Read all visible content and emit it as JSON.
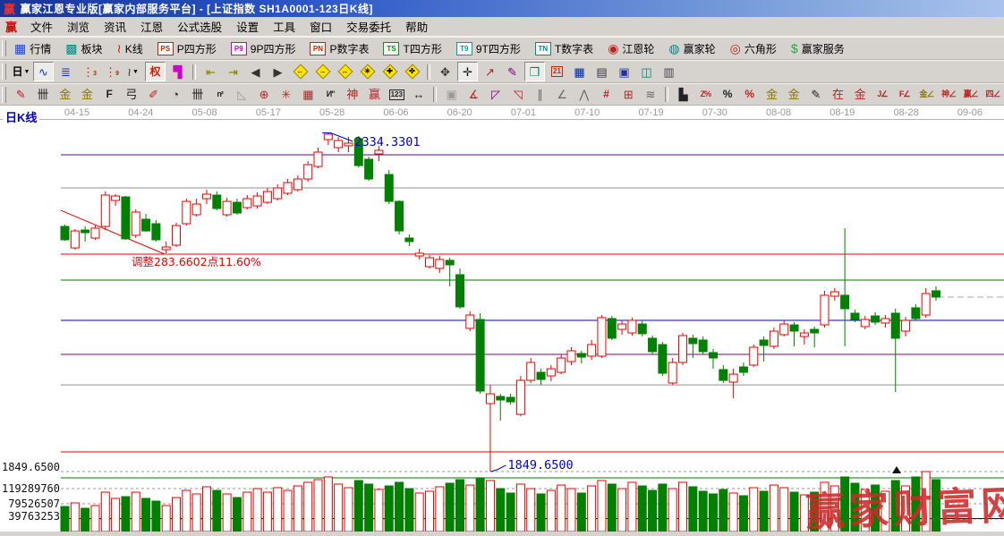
{
  "window": {
    "logo_glyph": "赢",
    "title": "赢家江恩专业版[赢家内部服务平台] - [上证指数  SH1A0001-123日K线]"
  },
  "menu": {
    "logo_glyph": "赢",
    "items": [
      "文件",
      "浏览",
      "资讯",
      "江恩",
      "公式选股",
      "设置",
      "工具",
      "窗口",
      "交易委托",
      "帮助"
    ]
  },
  "toolbar_main": [
    {
      "name": "quotes",
      "label": "行情",
      "glyph": "▦",
      "color": "#2244cc"
    },
    {
      "name": "sectors",
      "label": "板块",
      "glyph": "▩",
      "color": "#008b8b"
    },
    {
      "name": "kline",
      "label": "K线",
      "glyph": "≀",
      "color": "#cc2200"
    },
    {
      "name": "p-square",
      "label": "P四方形",
      "badge": "PS",
      "color": "#cc2200"
    },
    {
      "name": "9p-square",
      "label": "9P四方形",
      "badge": "P9",
      "color": "#cc00cc"
    },
    {
      "name": "p-digit-table",
      "label": "P数字表",
      "badge": "PN",
      "color": "#cc2200"
    },
    {
      "name": "t-square",
      "label": "T四方形",
      "badge": "TS",
      "color": "#009900"
    },
    {
      "name": "9t-square",
      "label": "9T四方形",
      "badge": "T9",
      "color": "#00a0a0"
    },
    {
      "name": "t-digit-table",
      "label": "T数字表",
      "badge": "TN",
      "color": "#008b8b"
    },
    {
      "name": "gann-wheel",
      "label": "江恩轮",
      "glyph": "◉",
      "color": "#bb2222"
    },
    {
      "name": "winner-wheel",
      "label": "赢家轮",
      "glyph": "◍",
      "color": "#008b8b"
    },
    {
      "name": "hexagon",
      "label": "六角形",
      "glyph": "◎",
      "color": "#bb2222"
    },
    {
      "name": "winner-service",
      "label": "赢家服务",
      "glyph": "$",
      "color": "#22aa44"
    }
  ],
  "toolbar_nav": [
    {
      "name": "period-day",
      "text": "日",
      "color": "#000000",
      "dropdown": true
    },
    {
      "name": "overlay-mode",
      "glyph": "∿",
      "color": "#1133cc",
      "pressed": true
    },
    {
      "name": "info-board",
      "glyph": "≣",
      "color": "#1133cc"
    },
    {
      "name": "ma3",
      "glyph": "⋮",
      "sub": "3",
      "color": "#cc2200"
    },
    {
      "name": "ma9",
      "glyph": "⋮",
      "sub": "9",
      "color": "#cc2200"
    },
    {
      "name": "candle-style",
      "glyph": "≀",
      "color": "#333333",
      "dropdown": true
    },
    {
      "name": "rights-adjust",
      "text": "权",
      "color": "#cc2200",
      "pressed": true
    },
    {
      "name": "vol-profile",
      "glyph": "▜",
      "color": "#cc00cc"
    },
    {
      "sep": true
    },
    {
      "name": "first-bar",
      "glyph": "⇤",
      "color": "#808000"
    },
    {
      "name": "last-bar",
      "glyph": "⇥",
      "color": "#808000"
    },
    {
      "name": "prev-bar",
      "glyph": "◀",
      "color": "#333333"
    },
    {
      "name": "next-bar",
      "glyph": "▶",
      "color": "#333333"
    },
    {
      "name": "gann-left",
      "diamond": true,
      "arrow": "←"
    },
    {
      "name": "gann-right",
      "diamond": true,
      "arrow": "→"
    },
    {
      "name": "gann-hspan",
      "diamond": true,
      "arrow": "↔"
    },
    {
      "name": "gann-star",
      "diamond": true,
      "arrow": "✳"
    },
    {
      "name": "gann-cross",
      "diamond": true,
      "arrow": "✚"
    },
    {
      "name": "gann-expand",
      "diamond": true,
      "arrow": "✜"
    },
    {
      "sep": true
    },
    {
      "name": "hand-tool",
      "glyph": "✥",
      "color": "#333333"
    },
    {
      "name": "crosshair-tool",
      "glyph": "✛",
      "color": "#111111",
      "pressed": true
    },
    {
      "name": "trendline-tool",
      "glyph": "↗",
      "color": "#aa2222"
    },
    {
      "name": "text-tool",
      "glyph": "✎",
      "color": "#800080"
    },
    {
      "name": "pattern-tool",
      "glyph": "❒",
      "color": "#008080",
      "pressed": true
    },
    {
      "name": "calendar",
      "text": "21",
      "color": "#cc2200",
      "boxed": true
    },
    {
      "name": "calculator",
      "glyph": "▦",
      "color": "#002299"
    },
    {
      "name": "memo",
      "glyph": "▤",
      "color": "#333344"
    },
    {
      "name": "save",
      "glyph": "▣",
      "color": "#223399"
    },
    {
      "name": "export-web",
      "glyph": "◫",
      "color": "#008080"
    },
    {
      "name": "print",
      "glyph": "▥",
      "color": "#444455"
    }
  ],
  "toolbar_draw": [
    {
      "name": "gann-pen",
      "glyph": "✎",
      "color": "#bb2222"
    },
    {
      "name": "price-ruler",
      "glyph": "卌",
      "color": "#222222"
    },
    {
      "name": "gold-ruler-1",
      "glyph": "金",
      "color": "#8b7500"
    },
    {
      "name": "gold-ruler-2",
      "glyph": "金",
      "color": "#8b7500"
    },
    {
      "name": "f-ruler",
      "text": "F",
      "color": "#222222"
    },
    {
      "name": "bow-ruler",
      "glyph": "弓",
      "color": "#222222"
    },
    {
      "name": "knife-ruler",
      "glyph": "✐",
      "color": "#bb2222"
    },
    {
      "name": "compass",
      "glyph": "◔",
      "color": "#222222"
    },
    {
      "name": "comb-ruler",
      "glyph": "卌",
      "color": "#222222"
    },
    {
      "name": "n2-ruler",
      "text": "n²",
      "color": "#222222"
    },
    {
      "name": "set-square",
      "glyph": "◺",
      "color": "#999999"
    },
    {
      "name": "circle-cross",
      "glyph": "⊕",
      "color": "#bb2222"
    },
    {
      "name": "star-grid",
      "glyph": "✳",
      "color": "#bb2222"
    },
    {
      "name": "box-grid",
      "glyph": "▦",
      "color": "#bb2222"
    },
    {
      "name": "wave-mark",
      "text": "И\"",
      "color": "#222222"
    },
    {
      "name": "shen-ruler",
      "glyph": "神",
      "color": "#bb2222"
    },
    {
      "name": "ying-ruler",
      "glyph": "赢",
      "color": "#bb2222"
    },
    {
      "name": "ruler-123",
      "text": "123",
      "color": "#222222",
      "boxed": true
    },
    {
      "name": "hspan",
      "glyph": "↔",
      "color": "#222222"
    },
    {
      "sep": true
    },
    {
      "name": "rect-zone",
      "glyph": "▣",
      "color": "#999999"
    },
    {
      "name": "gann-fan",
      "glyph": "∡",
      "color": "#bb2222"
    },
    {
      "name": "fan-box-purple",
      "glyph": "◸",
      "color": "#800080"
    },
    {
      "name": "fan-box-red",
      "glyph": "◹",
      "color": "#bb2222"
    },
    {
      "name": "parallel-lines",
      "glyph": "∥",
      "color": "#666666"
    },
    {
      "name": "angle-line",
      "glyph": "∠",
      "color": "#666666"
    },
    {
      "name": "zigzag",
      "glyph": "⋀",
      "color": "#666666"
    },
    {
      "name": "red-grid",
      "text": "#",
      "color": "#bb2222"
    },
    {
      "name": "red-grid-box",
      "glyph": "⊞",
      "color": "#bb2222"
    },
    {
      "name": "slant-lines",
      "glyph": "≋",
      "color": "#666666"
    },
    {
      "sep": true
    },
    {
      "name": "hist-percent",
      "glyph": "▙",
      "color": "#222222"
    },
    {
      "name": "z-percent",
      "text": "Z%",
      "color": "#bb2222"
    },
    {
      "name": "percent",
      "text": "%",
      "color": "#222222"
    },
    {
      "name": "percent-lines",
      "text": "%",
      "color": "#bb2222"
    },
    {
      "name": "gold-circle",
      "glyph": "金",
      "color": "#8b7500"
    },
    {
      "name": "gold-lines",
      "glyph": "金",
      "color": "#8b7500"
    },
    {
      "name": "small-pen",
      "glyph": "✎",
      "color": "#222222"
    },
    {
      "name": "zai-lines",
      "glyph": "在",
      "color": "#bb2222"
    },
    {
      "name": "gold-lines-red",
      "glyph": "金",
      "color": "#bb2222"
    },
    {
      "name": "j-angle",
      "text": "J∠",
      "color": "#bb2222"
    },
    {
      "name": "f-angle",
      "text": "F∠",
      "color": "#bb2222"
    },
    {
      "name": "gold-angle",
      "text": "金∠",
      "color": "#8b7500"
    },
    {
      "name": "shen-angle",
      "text": "神∠",
      "color": "#bb2222"
    },
    {
      "name": "ying-angle",
      "text": "赢∠",
      "color": "#bb2222"
    },
    {
      "name": "si-angle",
      "text": "四∠",
      "color": "#bb2222"
    }
  ],
  "chart": {
    "pane_label": "日K线"
  },
  "chart_data": {
    "type": "candlestick",
    "title": "上证指数 SH1A0001 日K线",
    "x_ticks": [
      "04-15",
      "04-24",
      "05-08",
      "05-17",
      "05-28",
      "06-06",
      "06-20",
      "07-01",
      "07-10",
      "07-19",
      "07-30",
      "08-08",
      "08-19",
      "08-28",
      "09-06"
    ],
    "price_axis": {
      "visible_range": [
        1843.2,
        2344.6
      ]
    },
    "left_axis_labels": [
      "1849.6500",
      "119289760",
      "79526507",
      "39763253"
    ],
    "volume_gridlines_m": [
      119.28976,
      79.526507,
      39.763253
    ],
    "levels": [
      {
        "price": 2302.4,
        "color": "#550a8a"
      },
      {
        "price": 2255.0,
        "color": "#909090"
      },
      {
        "price": 2160.4,
        "color": "#ee0000"
      },
      {
        "price": 2123.3,
        "color": "#007700"
      },
      {
        "price": 2065.8,
        "color": "#0000dd"
      },
      {
        "price": 2017.2,
        "color": "#800080"
      },
      {
        "price": 1973.6,
        "color": "#909090"
      },
      {
        "price": 1877.7,
        "color": "#ee0000"
      },
      {
        "price": 1849.65,
        "color": "#999999",
        "dash": true
      }
    ],
    "trendline": {
      "from": {
        "index": -0.35,
        "price": 2223.0
      },
      "to": {
        "index": 9.9,
        "price": 2160.4
      },
      "color": "#ee0000"
    },
    "annotations": {
      "swing_high_label": "2334.3301",
      "swing_high_price": 2334.3301,
      "swing_high_index": 26,
      "swing_low_label": "1849.6500",
      "swing_low_price": 1849.65,
      "swing_low_index": 42,
      "retracement_label": "调整283.6602点11.60%",
      "annotation_color": "#0000cc",
      "retracement_color": "#ee0000"
    },
    "last_close": 2099.0,
    "watermark": "赢家财富网",
    "colors": {
      "up": "#ee0000",
      "down": "#008000",
      "grid_dash": "#999999",
      "date_text": "#999999",
      "separator": "#007700",
      "volume_blue_line": "#0000bb",
      "hairline": "#b4b4b4"
    },
    "candles": [
      [
        2200.0,
        2202.6,
        2179.6,
        2180.9,
        72.5,
        "G"
      ],
      [
        2169.3,
        2196.2,
        2166.8,
        2193.6,
        81.9,
        "R"
      ],
      [
        2194.9,
        2200.0,
        2178.3,
        2191.1,
        67.8,
        "G"
      ],
      [
        2183.4,
        2201.3,
        2180.9,
        2197.5,
        74.8,
        "R"
      ],
      [
        2200.0,
        2249.9,
        2194.9,
        2244.8,
        109.9,
        "R"
      ],
      [
        2237.1,
        2246.1,
        2229.4,
        2243.5,
        93.6,
        "R"
      ],
      [
        2242.2,
        2243.5,
        2180.9,
        2182.2,
        98.2,
        "G"
      ],
      [
        2187.3,
        2224.3,
        2183.4,
        2220.5,
        109.9,
        "R"
      ],
      [
        2210.3,
        2218.0,
        2192.3,
        2193.6,
        93.6,
        "G"
      ],
      [
        2203.9,
        2209.0,
        2178.3,
        2180.9,
        86.5,
        "G"
      ],
      [
        2166.8,
        2178.3,
        2161.7,
        2170.6,
        74.8,
        "R"
      ],
      [
        2173.2,
        2205.2,
        2170.6,
        2201.3,
        95.9,
        "R"
      ],
      [
        2203.9,
        2239.7,
        2201.3,
        2235.8,
        114.6,
        "R"
      ],
      [
        2216.7,
        2239.7,
        2214.1,
        2232.0,
        105.3,
        "R"
      ],
      [
        2239.7,
        2252.5,
        2232.0,
        2246.1,
        124.0,
        "R"
      ],
      [
        2244.8,
        2249.9,
        2223.0,
        2225.6,
        114.6,
        "G"
      ],
      [
        2216.7,
        2241.0,
        2214.1,
        2235.8,
        105.3,
        "R"
      ],
      [
        2234.5,
        2239.7,
        2216.7,
        2219.2,
        95.9,
        "G"
      ],
      [
        2226.9,
        2244.8,
        2224.3,
        2239.7,
        109.9,
        "R"
      ],
      [
        2229.4,
        2248.6,
        2225.6,
        2243.5,
        119.3,
        "R"
      ],
      [
        2234.5,
        2255.0,
        2232.0,
        2249.9,
        109.9,
        "R"
      ],
      [
        2239.7,
        2260.2,
        2237.1,
        2255.0,
        121.6,
        "R"
      ],
      [
        2247.4,
        2267.8,
        2244.8,
        2262.7,
        114.6,
        "R"
      ],
      [
        2252.5,
        2272.9,
        2249.9,
        2267.8,
        126.3,
        "R"
      ],
      [
        2267.8,
        2293.4,
        2264.0,
        2288.3,
        135.7,
        "R"
      ],
      [
        2285.7,
        2312.6,
        2283.2,
        2306.2,
        142.7,
        "R"
      ],
      [
        2324.1,
        2334.3,
        2316.4,
        2331.8,
        149.7,
        "R"
      ],
      [
        2312.6,
        2327.9,
        2306.2,
        2322.8,
        131.0,
        "R"
      ],
      [
        2315.2,
        2327.9,
        2306.2,
        2319.0,
        121.6,
        "R"
      ],
      [
        2325.4,
        2329.2,
        2284.4,
        2287.0,
        140.3,
        "G"
      ],
      [
        2296.0,
        2299.8,
        2265.3,
        2267.8,
        131.0,
        "G"
      ],
      [
        2303.6,
        2315.2,
        2293.4,
        2308.8,
        116.9,
        "R"
      ],
      [
        2274.2,
        2280.6,
        2232.0,
        2235.8,
        126.3,
        "G"
      ],
      [
        2235.8,
        2237.1,
        2188.5,
        2193.6,
        135.7,
        "G"
      ],
      [
        2183.4,
        2188.5,
        2171.9,
        2178.3,
        119.3,
        "G"
      ],
      [
        2157.8,
        2168.1,
        2152.8,
        2161.7,
        107.6,
        "R"
      ],
      [
        2142.5,
        2159.1,
        2140.0,
        2155.3,
        112.3,
        "R"
      ],
      [
        2140.0,
        2157.8,
        2133.6,
        2152.8,
        124.0,
        "R"
      ],
      [
        2151.5,
        2155.3,
        2114.4,
        2145.1,
        133.3,
        "G"
      ],
      [
        2131.0,
        2140.0,
        2082.4,
        2085.0,
        142.7,
        "G"
      ],
      [
        2054.3,
        2078.6,
        2050.4,
        2073.4,
        128.6,
        "R"
      ],
      [
        2067.0,
        2076.0,
        1960.8,
        1964.7,
        147.4,
        "G"
      ],
      [
        1946.8,
        1973.6,
        1849.65,
        1960.8,
        140.3,
        "R"
      ],
      [
        1957.0,
        1960.8,
        1922.4,
        1951.9,
        119.3,
        "G"
      ],
      [
        1955.7,
        1960.8,
        1945.5,
        1949.3,
        107.6,
        "G"
      ],
      [
        1931.4,
        1986.4,
        1928.8,
        1980.0,
        131.0,
        "R"
      ],
      [
        1980.0,
        2012.0,
        1976.2,
        2005.6,
        119.3,
        "R"
      ],
      [
        1991.5,
        1996.6,
        1973.6,
        1981.3,
        105.3,
        "G"
      ],
      [
        1986.4,
        2001.8,
        1978.8,
        1996.6,
        114.6,
        "R"
      ],
      [
        1991.5,
        2017.1,
        1988.9,
        2012.0,
        128.6,
        "R"
      ],
      [
        2006.9,
        2027.4,
        2001.8,
        2022.3,
        119.3,
        "R"
      ],
      [
        2018.4,
        2022.3,
        2004.3,
        2013.3,
        107.6,
        "G"
      ],
      [
        2014.6,
        2037.6,
        2009.5,
        2031.2,
        126.3,
        "R"
      ],
      [
        2014.6,
        2073.4,
        2012.0,
        2069.6,
        140.3,
        "R"
      ],
      [
        2068.3,
        2072.1,
        2037.6,
        2040.2,
        131.0,
        "G"
      ],
      [
        2052.9,
        2065.8,
        2045.3,
        2060.6,
        119.3,
        "R"
      ],
      [
        2047.8,
        2069.6,
        2044.0,
        2065.8,
        135.7,
        "R"
      ],
      [
        2060.6,
        2065.8,
        2042.7,
        2046.6,
        126.3,
        "G"
      ],
      [
        2040.2,
        2044.0,
        2017.1,
        2021.0,
        114.6,
        "G"
      ],
      [
        2031.2,
        2035.1,
        1986.4,
        1990.2,
        131.0,
        "G"
      ],
      [
        1976.2,
        2012.0,
        1973.6,
        2005.6,
        119.3,
        "R"
      ],
      [
        2005.6,
        2047.8,
        2001.8,
        2044.0,
        135.7,
        "R"
      ],
      [
        2040.2,
        2045.3,
        2012.0,
        2032.5,
        124.0,
        "G"
      ],
      [
        2037.6,
        2042.7,
        2017.1,
        2021.0,
        112.3,
        "G"
      ],
      [
        2019.7,
        2024.8,
        1996.6,
        2012.0,
        105.3,
        "G"
      ],
      [
        1995.4,
        2001.8,
        1976.2,
        1980.0,
        116.9,
        "G"
      ],
      [
        1977.5,
        1996.6,
        1954.4,
        1988.9,
        107.6,
        "R"
      ],
      [
        1999.2,
        2005.6,
        1986.4,
        1991.5,
        100.6,
        "G"
      ],
      [
        2001.8,
        2031.2,
        1999.2,
        2027.4,
        121.6,
        "R"
      ],
      [
        2037.6,
        2042.7,
        2006.9,
        2029.9,
        112.3,
        "G"
      ],
      [
        2028.7,
        2055.5,
        2024.8,
        2050.4,
        128.6,
        "R"
      ],
      [
        2045.3,
        2065.8,
        2042.7,
        2060.6,
        121.6,
        "R"
      ],
      [
        2059.3,
        2063.2,
        2028.7,
        2050.4,
        109.9,
        "G"
      ],
      [
        2042.7,
        2052.9,
        2031.2,
        2047.8,
        102.9,
        "R"
      ],
      [
        2052.9,
        2056.8,
        2027.4,
        2047.8,
        109.9,
        "G"
      ],
      [
        2059.3,
        2108.0,
        2055.5,
        2101.6,
        135.7,
        "R"
      ],
      [
        2100.3,
        2111.8,
        2093.9,
        2106.7,
        126.3,
        "R"
      ],
      [
        2101.6,
        2197.5,
        2028.7,
        2082.4,
        149.7,
        "G"
      ],
      [
        2076.0,
        2081.1,
        2063.2,
        2067.0,
        133.3,
        "G"
      ],
      [
        2056.8,
        2072.1,
        2052.9,
        2067.0,
        116.9,
        "R"
      ],
      [
        2072.1,
        2077.3,
        2059.3,
        2063.2,
        128.6,
        "G"
      ],
      [
        2061.9,
        2073.4,
        2055.5,
        2068.3,
        112.3,
        "R"
      ],
      [
        2076.0,
        2082.4,
        1963.4,
        2040.2,
        140.3,
        "G"
      ],
      [
        2050.4,
        2070.8,
        2042.7,
        2065.8,
        126.3,
        "R"
      ],
      [
        2083.7,
        2088.8,
        2065.8,
        2068.3,
        149.7,
        "G"
      ],
      [
        2073.4,
        2111.8,
        2069.6,
        2104.1,
        163.7,
        "R"
      ],
      [
        2108.0,
        2114.4,
        2093.9,
        2099.0,
        142.7,
        "G"
      ]
    ]
  }
}
